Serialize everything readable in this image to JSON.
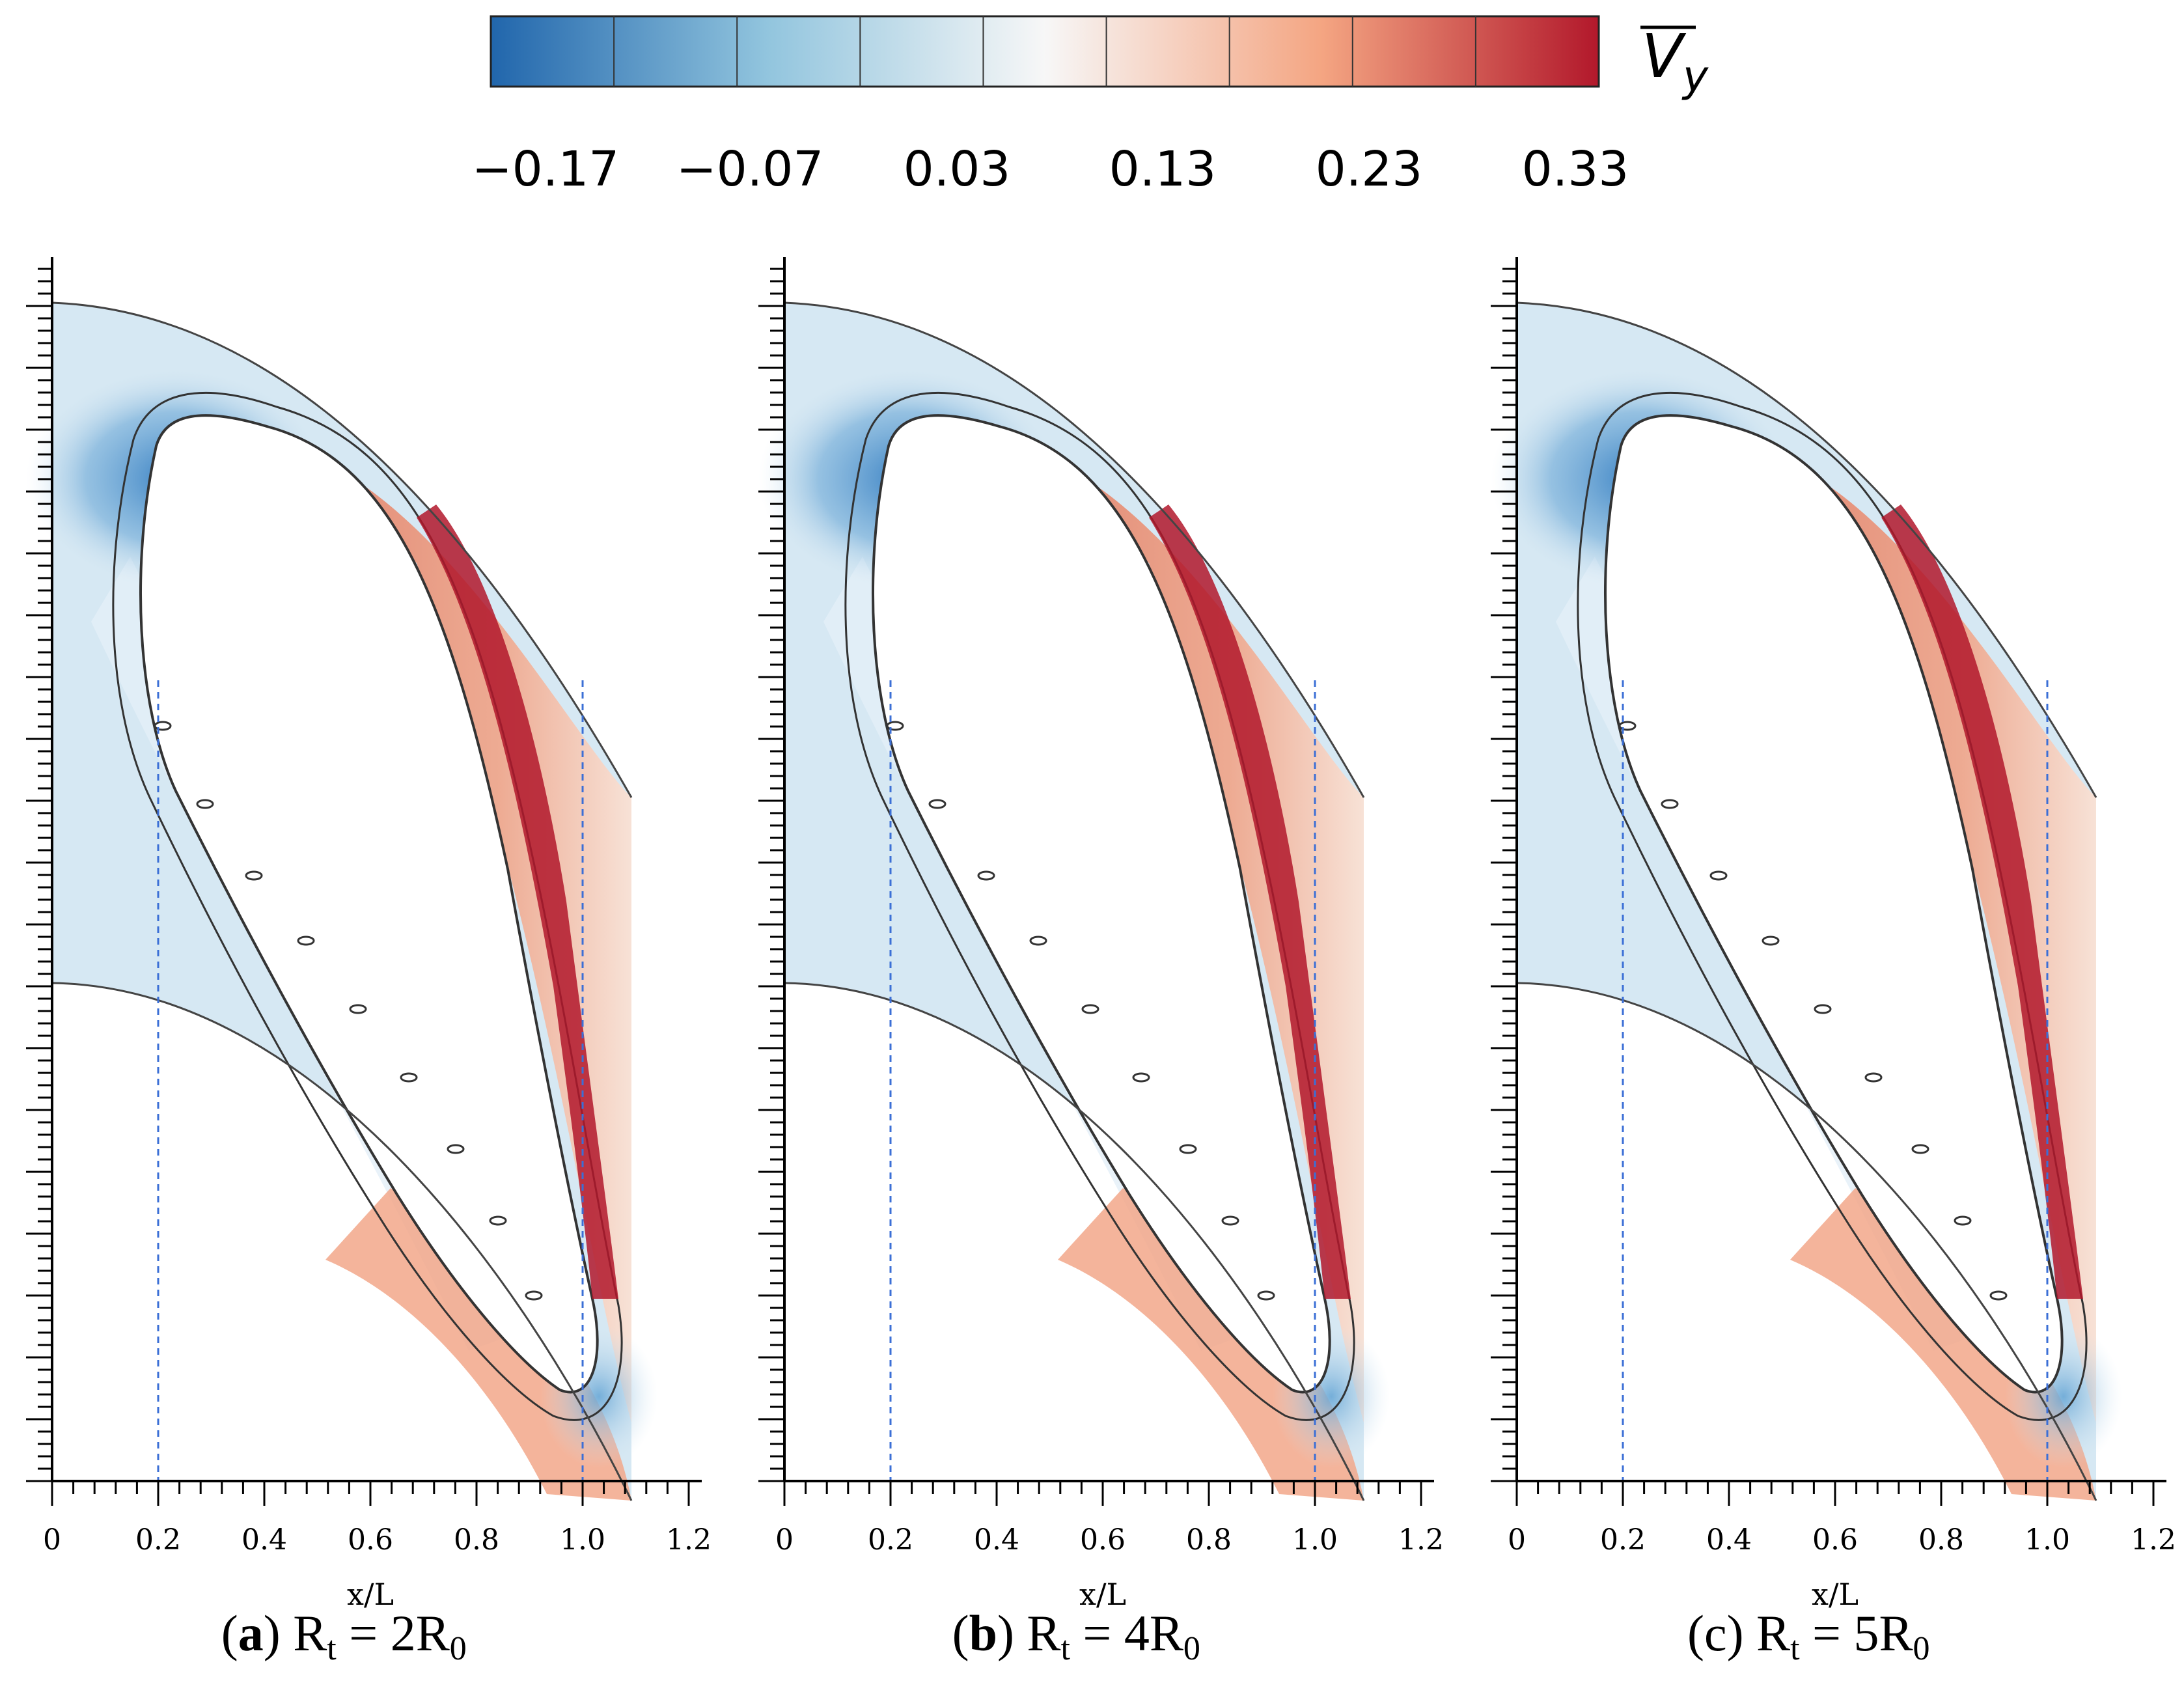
{
  "colorbar": {
    "symbol": "V",
    "subscript": "y",
    "ticks": [
      "−0.17",
      "−0.07",
      "0.03",
      "0.13",
      "0.23",
      "0.33"
    ],
    "colors": [
      "#2166ac",
      "#4393c3",
      "#92c5de",
      "#d1e5f0",
      "#f7f7f7",
      "#fddbc7",
      "#f4a582",
      "#d6604d",
      "#b2182b"
    ]
  },
  "chart_data": [
    {
      "type": "heatmap",
      "xlabel": "x/L",
      "xticks": [
        "0",
        "0.2",
        "0.4",
        "0.6",
        "0.8",
        "1.0",
        "1.2"
      ],
      "xlim": [
        0,
        1.2
      ],
      "reference_lines_x": [
        0.2,
        1.0
      ],
      "caption": {
        "letter": "a",
        "text": "Rt = 2R0",
        "left": "(",
        "right": ") R",
        "sub": "t",
        "mid": " = 2R",
        "sub2": "0"
      }
    },
    {
      "type": "heatmap",
      "xlabel": "x/L",
      "xticks": [
        "0",
        "0.2",
        "0.4",
        "0.6",
        "0.8",
        "1.0",
        "1.2"
      ],
      "xlim": [
        0,
        1.2
      ],
      "reference_lines_x": [
        0.2,
        1.0
      ],
      "caption": {
        "letter": "b",
        "text": "Rt = 4R0",
        "left": "(",
        "right": ") R",
        "sub": "t",
        "mid": " = 4R",
        "sub2": "0"
      }
    },
    {
      "type": "heatmap",
      "xlabel": "x/L",
      "xticks": [
        "0",
        "0.2",
        "0.4",
        "0.6",
        "0.8",
        "1.0",
        "1.2"
      ],
      "xlim": [
        0,
        1.2
      ],
      "reference_lines_x": [
        0.2,
        1.0
      ],
      "caption": {
        "letter": "c",
        "text": "Rt = 5R0",
        "left": "(c",
        "right": ") R",
        "sub": "t",
        "mid": " = 5R",
        "sub2": "0"
      }
    }
  ]
}
